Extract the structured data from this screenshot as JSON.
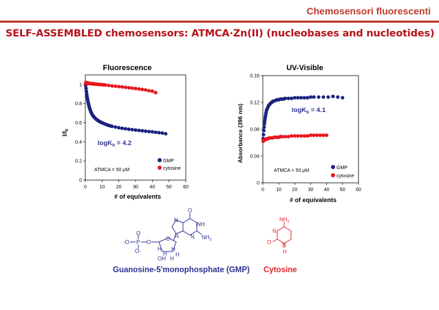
{
  "header": {
    "title": "Chemosensori fluorescenti"
  },
  "slide": {
    "title": "SELF-ASSEMBLED chemosensors: ATMCA·Zn(II) (nucleobases and nucleotides)"
  },
  "colors": {
    "gmp": "#1a237e",
    "cytosine": "#e8161f",
    "accent": "#c0392b",
    "annotation": "#2e3192"
  },
  "chart_data": [
    {
      "type": "scatter",
      "title": "Fluorescence",
      "xlabel": "# of equivalents",
      "ylabel_main": "I/I",
      "ylabel_sub": "0",
      "xlim": [
        0,
        60
      ],
      "ylim": [
        0,
        1.1
      ],
      "xticks": [
        "0",
        "10",
        "20",
        "30",
        "40",
        "50",
        "60"
      ],
      "yticks": [
        "0",
        "0.2",
        "0.4",
        "0.6",
        "0.8",
        "1"
      ],
      "annotation": {
        "prefix": "logK",
        "sub": "b",
        "suffix": " = 4.2"
      },
      "conditions": "ATMCA = 50 μM",
      "legend_position": "bottom-right",
      "series": [
        {
          "name": "GMP",
          "color": "#1a237e",
          "x": [
            0.2,
            0.4,
            0.6,
            0.8,
            1,
            1.2,
            1.4,
            1.6,
            1.8,
            2,
            2.2,
            2.4,
            2.6,
            2.8,
            3,
            3.3,
            3.6,
            3.9,
            4.2,
            4.5,
            4.8,
            5.2,
            5.6,
            6,
            6.5,
            7,
            7.5,
            8,
            8.5,
            9,
            9.5,
            10,
            11,
            12,
            13,
            14,
            15,
            16,
            18,
            20,
            22,
            24,
            26,
            28,
            30,
            32,
            34,
            36,
            38,
            40,
            42,
            44,
            46,
            48
          ],
          "y": [
            0.99,
            0.96,
            0.93,
            0.905,
            0.88,
            0.86,
            0.84,
            0.82,
            0.805,
            0.79,
            0.775,
            0.76,
            0.75,
            0.74,
            0.73,
            0.715,
            0.703,
            0.693,
            0.684,
            0.675,
            0.668,
            0.66,
            0.652,
            0.645,
            0.637,
            0.63,
            0.624,
            0.618,
            0.613,
            0.608,
            0.604,
            0.6,
            0.592,
            0.585,
            0.578,
            0.572,
            0.567,
            0.562,
            0.555,
            0.548,
            0.542,
            0.537,
            0.532,
            0.528,
            0.524,
            0.52,
            0.516,
            0.512,
            0.508,
            0.505,
            0.5,
            0.496,
            0.492,
            0.485
          ]
        },
        {
          "name": "cytosine",
          "color": "#e8161f",
          "x": [
            0.2,
            0.4,
            0.6,
            0.8,
            1,
            1.2,
            1.5,
            1.8,
            2,
            2.5,
            3,
            3.5,
            4,
            4.5,
            5,
            5.5,
            6,
            7,
            8,
            9,
            10,
            11,
            12,
            14,
            16,
            18,
            20,
            22,
            24,
            26,
            28,
            30,
            32,
            34,
            36,
            38,
            40,
            42
          ],
          "y": [
            1.01,
            1.02,
            1.015,
            1.02,
            1.01,
            1.015,
            1.01,
            1.015,
            1.01,
            1.012,
            1.01,
            1.008,
            1.01,
            1.005,
            1.008,
            1.005,
            1.004,
            1.003,
            1.0,
            1.0,
            0.998,
            0.996,
            0.995,
            0.99,
            0.985,
            0.982,
            0.978,
            0.975,
            0.97,
            0.966,
            0.962,
            0.958,
            0.953,
            0.948,
            0.943,
            0.935,
            0.93,
            0.915
          ]
        }
      ]
    },
    {
      "type": "scatter",
      "title": "UV-Visible",
      "xlabel": "# of equivalents",
      "ylabel": "Absorbance (396 nm)",
      "xlim": [
        0,
        60
      ],
      "ylim": [
        0,
        0.16
      ],
      "xticks": [
        "0",
        "10",
        "20",
        "30",
        "40",
        "50",
        "60"
      ],
      "yticks": [
        "0",
        "0.04",
        "0.08",
        "0.12",
        "0.16"
      ],
      "annotation": {
        "prefix": "logK",
        "sub": "b",
        "suffix": " = 4.1"
      },
      "conditions": "ATMCA = 50 μM",
      "legend_position": "bottom-right",
      "series": [
        {
          "name": "GMP",
          "color": "#1a237e",
          "x": [
            0.2,
            0.4,
            0.6,
            0.8,
            1,
            1.2,
            1.4,
            1.6,
            1.8,
            2,
            2.3,
            2.6,
            3,
            3.4,
            3.8,
            4.2,
            4.6,
            5,
            5.5,
            6,
            6.5,
            7,
            8,
            9,
            10,
            11,
            12,
            13,
            14,
            16,
            18,
            20,
            22,
            24,
            26,
            28,
            30,
            32,
            35,
            38,
            41,
            44,
            47,
            50
          ],
          "y": [
            0.066,
            0.072,
            0.078,
            0.083,
            0.088,
            0.092,
            0.096,
            0.099,
            0.102,
            0.105,
            0.108,
            0.11,
            0.112,
            0.114,
            0.116,
            0.117,
            0.118,
            0.119,
            0.12,
            0.121,
            0.122,
            0.122,
            0.123,
            0.124,
            0.124,
            0.125,
            0.125,
            0.125,
            0.126,
            0.126,
            0.126,
            0.127,
            0.127,
            0.127,
            0.127,
            0.127,
            0.128,
            0.128,
            0.128,
            0.128,
            0.128,
            0.129,
            0.128,
            0.127
          ]
        },
        {
          "name": "cytosine",
          "color": "#e8161f",
          "x": [
            0.2,
            0.5,
            0.8,
            1.2,
            1.6,
            2,
            2.5,
            3,
            3.5,
            4,
            5,
            6,
            7,
            8,
            9,
            10,
            11,
            12,
            14,
            16,
            18,
            20,
            22,
            24,
            26,
            28,
            30,
            32,
            34,
            36,
            38,
            40
          ],
          "y": [
            0.062,
            0.063,
            0.064,
            0.064,
            0.065,
            0.065,
            0.066,
            0.066,
            0.066,
            0.067,
            0.067,
            0.067,
            0.068,
            0.068,
            0.068,
            0.068,
            0.069,
            0.069,
            0.069,
            0.069,
            0.07,
            0.07,
            0.07,
            0.07,
            0.07,
            0.07,
            0.071,
            0.071,
            0.071,
            0.071,
            0.071,
            0.071
          ]
        }
      ]
    }
  ],
  "molecules": {
    "gmp": {
      "caption": "Guanosine-5'monophosphate (GMP)",
      "atoms": {
        "o_top": "O",
        "nh": "NH",
        "nh2": "NH",
        "nh2_sub": "2",
        "n_left": "N",
        "n_bottom": "N",
        "n_ring_left": "N",
        "n_ring_right": "N",
        "phosphate_label": "-O",
        "p": "P",
        "o_p_top": "O",
        "o_p_bottom": "O-",
        "o_bridge": "O",
        "o_ring": "O",
        "h1": "H",
        "h2": "H",
        "h3": "H",
        "h4": "H",
        "oh": "OH",
        "h5": "H"
      }
    },
    "cytosine": {
      "caption": "Cytosine",
      "atoms": {
        "nh2": "NH",
        "nh2_sub": "2",
        "n_top": "N",
        "o": "O",
        "n_bottom": "N",
        "h": "H"
      }
    }
  }
}
